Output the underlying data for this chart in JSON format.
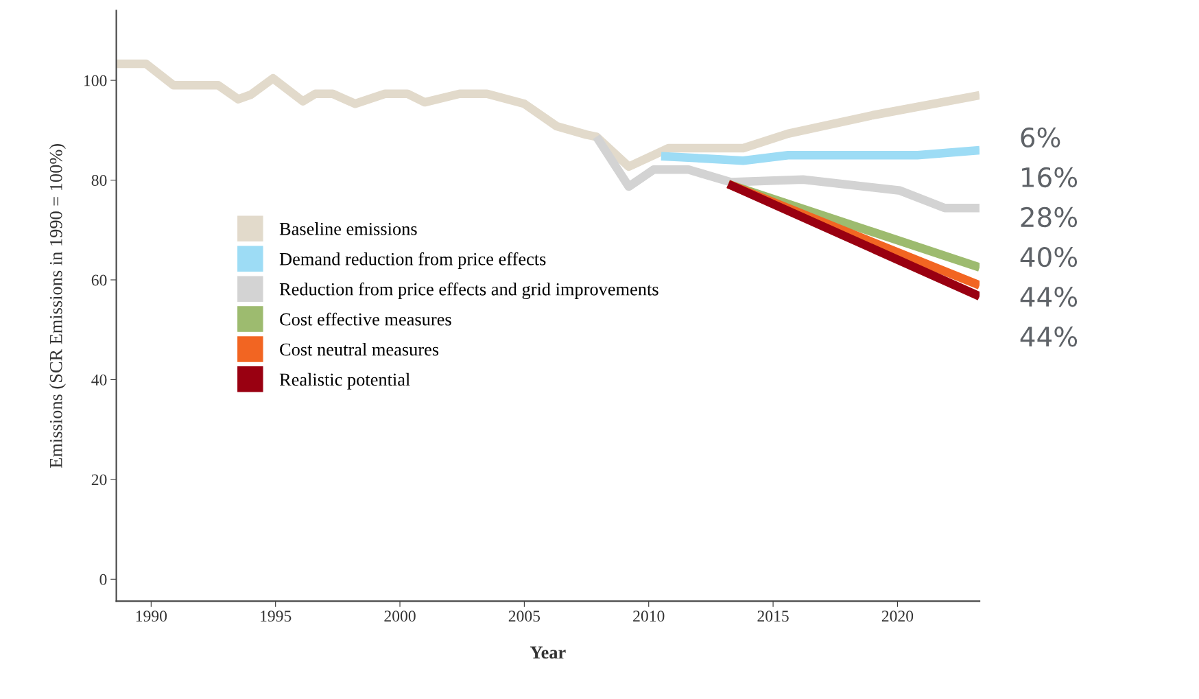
{
  "chart_data": {
    "type": "line",
    "xlabel": "Year",
    "ylabel": "Emissions (SCR Emissions in 1990 = 100%)",
    "xlim": [
      1988.6,
      2023.3
    ],
    "ylim": [
      -4.4,
      114
    ],
    "xticks": [
      1990,
      1995,
      2000,
      2005,
      2010,
      2015,
      2020
    ],
    "yticks": [
      0,
      20,
      40,
      60,
      80,
      100
    ],
    "grid": false,
    "legend": "center left",
    "line_style": "solid",
    "marker": "none",
    "series": [
      {
        "name": "Baseline emissions",
        "color": "#e2dacb",
        "x": [
          1988.6,
          1989.8,
          1990.9,
          1992.7,
          1993.5,
          1994.0,
          1994.9,
          1996.1,
          1996.6,
          1997.3,
          1998.2,
          1999.4,
          2000.3,
          2001.0,
          2002.4,
          2003.5,
          2005.0,
          2006.3,
          2007.5,
          2007.9,
          2009.2,
          2010.8,
          2013.8,
          2015.6,
          2019.0,
          2023.3
        ],
        "values": [
          103.3,
          103.3,
          99.0,
          99.0,
          96.2,
          97.1,
          100.4,
          95.8,
          97.3,
          97.3,
          95.3,
          97.3,
          97.3,
          95.6,
          97.3,
          97.3,
          95.3,
          90.8,
          89.1,
          88.7,
          82.7,
          86.4,
          86.4,
          89.3,
          93.0,
          97.0
        ]
      },
      {
        "name": "Demand reduction from price effects",
        "color": "#9ddcf5",
        "x": [
          2010.5,
          2013.8,
          2015.6,
          2020.8,
          2023.3
        ],
        "values": [
          84.8,
          83.9,
          85.0,
          85.0,
          86.0
        ]
      },
      {
        "name": "Reduction from price effects and grid improvements",
        "color": "#d3d3d3",
        "x": [
          2007.9,
          2009.2,
          2010.2,
          2011.6,
          2013.3,
          2016.2,
          2020.1,
          2021.9,
          2023.3
        ],
        "values": [
          88.7,
          78.7,
          82.1,
          82.1,
          79.6,
          80.1,
          77.9,
          74.4,
          74.4
        ]
      },
      {
        "name": "Cost effective measures",
        "color": "#9dbb6f",
        "x": [
          2013.2,
          2023.3
        ],
        "values": [
          79.2,
          62.5
        ]
      },
      {
        "name": "Cost neutral measures",
        "color": "#f26522",
        "x": [
          2013.2,
          2023.3
        ],
        "values": [
          79.2,
          58.9
        ]
      },
      {
        "name": "Realistic potential",
        "color": "#990011",
        "x": [
          2013.2,
          2023.3
        ],
        "values": [
          79.2,
          56.7
        ]
      }
    ],
    "annotations": [
      "6%",
      "16%",
      "28%",
      "40%",
      "44%",
      "44%"
    ]
  }
}
